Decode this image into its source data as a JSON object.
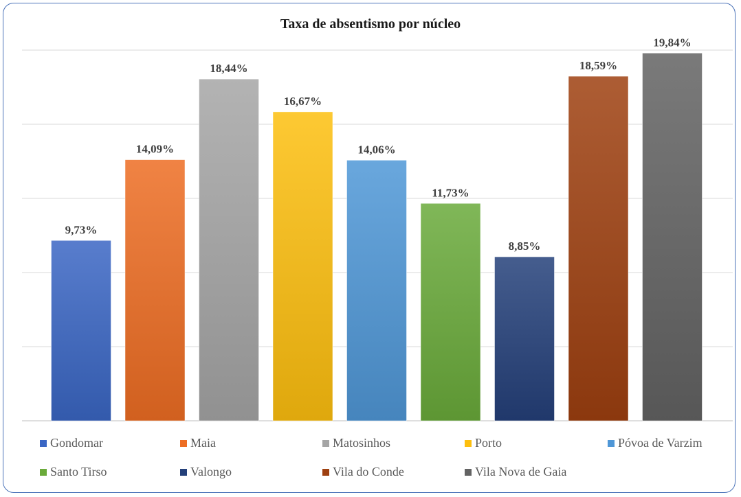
{
  "chart_data": {
    "type": "bar",
    "title": "Taxa de absentismo por núcleo",
    "xlabel": "",
    "ylabel": "",
    "ylim": [
      0,
      20
    ],
    "grid": true,
    "legend_position": "bottom",
    "categories": [
      "Gondomar",
      "Maia",
      "Matosinhos",
      "Porto",
      "Póvoa de Varzim",
      "Santo Tirso",
      "Valongo",
      "Vila do Conde",
      "Vila Nova de Gaia"
    ],
    "values": [
      9.73,
      14.09,
      18.44,
      16.67,
      14.06,
      11.73,
      8.85,
      18.59,
      19.84
    ],
    "data_labels": [
      "9,73%",
      "14,09%",
      "18,44%",
      "16,67%",
      "14,06%",
      "11,73%",
      "8,85%",
      "18,59%",
      "19,84%"
    ],
    "colors": [
      "#3a66c4",
      "#ed6d23",
      "#a5a5a5",
      "#fdbf0f",
      "#4f97d7",
      "#6aaa3a",
      "#24407a",
      "#9e4010",
      "#636363"
    ]
  }
}
